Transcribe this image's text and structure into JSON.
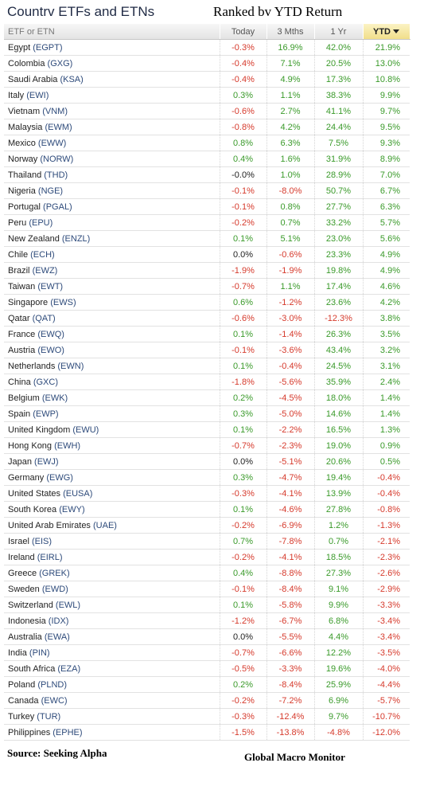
{
  "header": {
    "title": "Countrv ETFs and ETNs",
    "subtitle": "Ranked bv YTD Return"
  },
  "columns": [
    "ETF or ETN",
    "Today",
    "3 Mths",
    "1 Yr",
    "YTD"
  ],
  "sorted_column": "YTD",
  "colors": {
    "positive": "#3a9a2a",
    "negative": "#d63a2c",
    "ticker": "#2d4a7a",
    "sorted_header": "#f1de8a"
  },
  "rows": [
    {
      "country": "Egypt",
      "ticker": "(EGPT)",
      "today": "-0.3%",
      "m3": "16.9%",
      "y1": "42.0%",
      "ytd": "21.9%"
    },
    {
      "country": "Colombia",
      "ticker": "(GXG)",
      "today": "-0.4%",
      "m3": "7.1%",
      "y1": "20.5%",
      "ytd": "13.0%"
    },
    {
      "country": "Saudi Arabia",
      "ticker": "(KSA)",
      "today": "-0.4%",
      "m3": "4.9%",
      "y1": "17.3%",
      "ytd": "10.8%"
    },
    {
      "country": "Italy",
      "ticker": "(EWI)",
      "today": "0.3%",
      "m3": "1.1%",
      "y1": "38.3%",
      "ytd": "9.9%"
    },
    {
      "country": "Vietnam",
      "ticker": "(VNM)",
      "today": "-0.6%",
      "m3": "2.7%",
      "y1": "41.1%",
      "ytd": "9.7%"
    },
    {
      "country": "Malaysia",
      "ticker": "(EWM)",
      "today": "-0.8%",
      "m3": "4.2%",
      "y1": "24.4%",
      "ytd": "9.5%"
    },
    {
      "country": "Mexico",
      "ticker": "(EWW)",
      "today": "0.8%",
      "m3": "6.3%",
      "y1": "7.5%",
      "ytd": "9.3%"
    },
    {
      "country": "Norway",
      "ticker": "(NORW)",
      "today": "0.4%",
      "m3": "1.6%",
      "y1": "31.9%",
      "ytd": "8.9%"
    },
    {
      "country": "Thailand",
      "ticker": "(THD)",
      "today": "-0.0%",
      "m3": "1.0%",
      "y1": "28.9%",
      "ytd": "7.0%"
    },
    {
      "country": "Nigeria",
      "ticker": "(NGE)",
      "today": "-0.1%",
      "m3": "-8.0%",
      "y1": "50.7%",
      "ytd": "6.7%"
    },
    {
      "country": "Portugal",
      "ticker": "(PGAL)",
      "today": "-0.1%",
      "m3": "0.8%",
      "y1": "27.7%",
      "ytd": "6.3%"
    },
    {
      "country": "Peru",
      "ticker": "(EPU)",
      "today": "-0.2%",
      "m3": "0.7%",
      "y1": "33.2%",
      "ytd": "5.7%"
    },
    {
      "country": "New Zealand",
      "ticker": "(ENZL)",
      "today": "0.1%",
      "m3": "5.1%",
      "y1": "23.0%",
      "ytd": "5.6%"
    },
    {
      "country": "Chile",
      "ticker": "(ECH)",
      "today": "0.0%",
      "m3": "-0.6%",
      "y1": "23.3%",
      "ytd": "4.9%"
    },
    {
      "country": "Brazil",
      "ticker": "(EWZ)",
      "today": "-1.9%",
      "m3": "-1.9%",
      "y1": "19.8%",
      "ytd": "4.9%"
    },
    {
      "country": "Taiwan",
      "ticker": "(EWT)",
      "today": "-0.7%",
      "m3": "1.1%",
      "y1": "17.4%",
      "ytd": "4.6%"
    },
    {
      "country": "Singapore",
      "ticker": "(EWS)",
      "today": "0.6%",
      "m3": "-1.2%",
      "y1": "23.6%",
      "ytd": "4.2%"
    },
    {
      "country": "Qatar",
      "ticker": "(QAT)",
      "today": "-0.6%",
      "m3": "-3.0%",
      "y1": "-12.3%",
      "ytd": "3.8%"
    },
    {
      "country": "France",
      "ticker": "(EWQ)",
      "today": "0.1%",
      "m3": "-1.4%",
      "y1": "26.3%",
      "ytd": "3.5%"
    },
    {
      "country": "Austria",
      "ticker": "(EWO)",
      "today": "-0.1%",
      "m3": "-3.6%",
      "y1": "43.4%",
      "ytd": "3.2%"
    },
    {
      "country": "Netherlands",
      "ticker": "(EWN)",
      "today": "0.1%",
      "m3": "-0.4%",
      "y1": "24.5%",
      "ytd": "3.1%"
    },
    {
      "country": "China",
      "ticker": "(GXC)",
      "today": "-1.8%",
      "m3": "-5.6%",
      "y1": "35.9%",
      "ytd": "2.4%"
    },
    {
      "country": "Belgium",
      "ticker": "(EWK)",
      "today": "0.2%",
      "m3": "-4.5%",
      "y1": "18.0%",
      "ytd": "1.4%"
    },
    {
      "country": "Spain",
      "ticker": "(EWP)",
      "today": "0.3%",
      "m3": "-5.0%",
      "y1": "14.6%",
      "ytd": "1.4%"
    },
    {
      "country": "United Kingdom",
      "ticker": "(EWU)",
      "today": "0.1%",
      "m3": "-2.2%",
      "y1": "16.5%",
      "ytd": "1.3%"
    },
    {
      "country": "Hong Kong",
      "ticker": "(EWH)",
      "today": "-0.7%",
      "m3": "-2.3%",
      "y1": "19.0%",
      "ytd": "0.9%"
    },
    {
      "country": "Japan",
      "ticker": "(EWJ)",
      "today": "0.0%",
      "m3": "-5.1%",
      "y1": "20.6%",
      "ytd": "0.5%"
    },
    {
      "country": "Germany",
      "ticker": "(EWG)",
      "today": "0.3%",
      "m3": "-4.7%",
      "y1": "19.4%",
      "ytd": "-0.4%"
    },
    {
      "country": "United States",
      "ticker": "(EUSA)",
      "today": "-0.3%",
      "m3": "-4.1%",
      "y1": "13.9%",
      "ytd": "-0.4%"
    },
    {
      "country": "South Korea",
      "ticker": "(EWY)",
      "today": "0.1%",
      "m3": "-4.6%",
      "y1": "27.8%",
      "ytd": "-0.8%"
    },
    {
      "country": "United Arab Emirates",
      "ticker": "(UAE)",
      "today": "-0.2%",
      "m3": "-6.9%",
      "y1": "1.2%",
      "ytd": "-1.3%"
    },
    {
      "country": "Israel",
      "ticker": "(EIS)",
      "today": "0.7%",
      "m3": "-7.8%",
      "y1": "0.7%",
      "ytd": "-2.1%"
    },
    {
      "country": "Ireland",
      "ticker": "(EIRL)",
      "today": "-0.2%",
      "m3": "-4.1%",
      "y1": "18.5%",
      "ytd": "-2.3%"
    },
    {
      "country": "Greece",
      "ticker": "(GREK)",
      "today": "0.4%",
      "m3": "-8.8%",
      "y1": "27.3%",
      "ytd": "-2.6%"
    },
    {
      "country": "Sweden",
      "ticker": "(EWD)",
      "today": "-0.1%",
      "m3": "-8.4%",
      "y1": "9.1%",
      "ytd": "-2.9%"
    },
    {
      "country": "Switzerland",
      "ticker": "(EWL)",
      "today": "0.1%",
      "m3": "-5.8%",
      "y1": "9.9%",
      "ytd": "-3.3%"
    },
    {
      "country": "Indonesia",
      "ticker": "(IDX)",
      "today": "-1.2%",
      "m3": "-6.7%",
      "y1": "6.8%",
      "ytd": "-3.4%"
    },
    {
      "country": "Australia",
      "ticker": "(EWA)",
      "today": "0.0%",
      "m3": "-5.5%",
      "y1": "4.4%",
      "ytd": "-3.4%"
    },
    {
      "country": "India",
      "ticker": "(PIN)",
      "today": "-0.7%",
      "m3": "-6.6%",
      "y1": "12.2%",
      "ytd": "-3.5%"
    },
    {
      "country": "South Africa",
      "ticker": "(EZA)",
      "today": "-0.5%",
      "m3": "-3.3%",
      "y1": "19.6%",
      "ytd": "-4.0%"
    },
    {
      "country": "Poland",
      "ticker": "(PLND)",
      "today": "0.2%",
      "m3": "-8.4%",
      "y1": "25.9%",
      "ytd": "-4.4%"
    },
    {
      "country": "Canada",
      "ticker": "(EWC)",
      "today": "-0.2%",
      "m3": "-7.2%",
      "y1": "6.9%",
      "ytd": "-5.7%"
    },
    {
      "country": "Turkey",
      "ticker": "(TUR)",
      "today": "-0.3%",
      "m3": "-12.4%",
      "y1": "9.7%",
      "ytd": "-10.7%"
    },
    {
      "country": "Philippines",
      "ticker": "(EPHE)",
      "today": "-1.5%",
      "m3": "-13.8%",
      "y1": "-4.8%",
      "ytd": "-12.0%"
    }
  ],
  "footer": {
    "source": "Source:  Seeking Alpha",
    "credit": "Global Macro Monitor"
  }
}
